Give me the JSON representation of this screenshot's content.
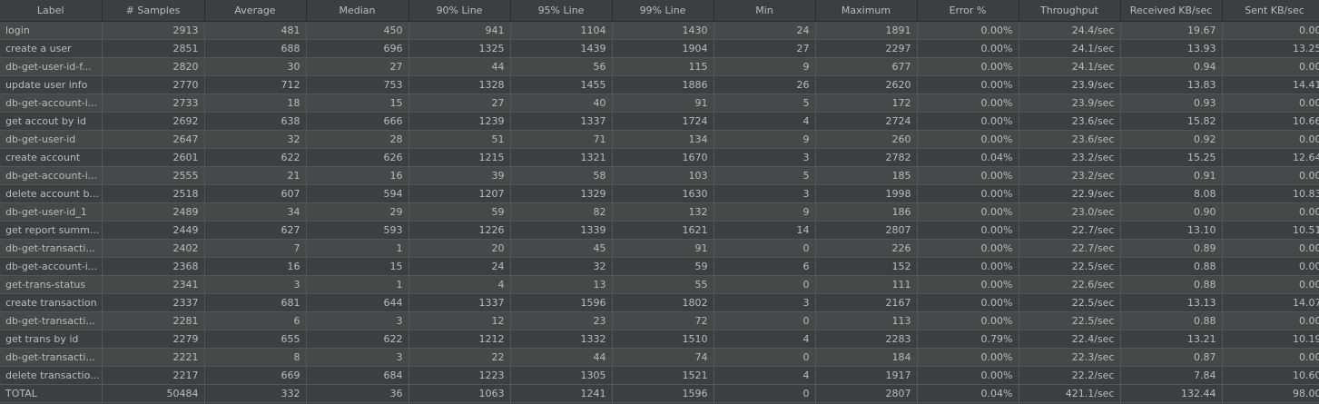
{
  "table": {
    "columns": [
      "Label",
      "# Samples",
      "Average",
      "Median",
      "90% Line",
      "95% Line",
      "99% Line",
      "Min",
      "Maximum",
      "Error %",
      "Throughput",
      "Received KB/sec",
      "Sent KB/sec"
    ],
    "rows": [
      [
        "login",
        "2913",
        "481",
        "450",
        "941",
        "1104",
        "1430",
        "24",
        "1891",
        "0.00%",
        "24.4/sec",
        "19.67",
        "0.00"
      ],
      [
        "create a user",
        "2851",
        "688",
        "696",
        "1325",
        "1439",
        "1904",
        "27",
        "2297",
        "0.00%",
        "24.1/sec",
        "13.93",
        "13.25"
      ],
      [
        "db-get-user-id-f...",
        "2820",
        "30",
        "27",
        "44",
        "56",
        "115",
        "9",
        "677",
        "0.00%",
        "24.1/sec",
        "0.94",
        "0.00"
      ],
      [
        "update user info",
        "2770",
        "712",
        "753",
        "1328",
        "1455",
        "1886",
        "26",
        "2620",
        "0.00%",
        "23.9/sec",
        "13.83",
        "14.41"
      ],
      [
        "db-get-account-i...",
        "2733",
        "18",
        "15",
        "27",
        "40",
        "91",
        "5",
        "172",
        "0.00%",
        "23.9/sec",
        "0.93",
        "0.00"
      ],
      [
        "get accout by id",
        "2692",
        "638",
        "666",
        "1239",
        "1337",
        "1724",
        "4",
        "2724",
        "0.00%",
        "23.6/sec",
        "15.82",
        "10.66"
      ],
      [
        "db-get-user-id",
        "2647",
        "32",
        "28",
        "51",
        "71",
        "134",
        "9",
        "260",
        "0.00%",
        "23.6/sec",
        "0.92",
        "0.00"
      ],
      [
        "create account",
        "2601",
        "622",
        "626",
        "1215",
        "1321",
        "1670",
        "3",
        "2782",
        "0.04%",
        "23.2/sec",
        "15.25",
        "12.64"
      ],
      [
        "db-get-account-i...",
        "2555",
        "21",
        "16",
        "39",
        "58",
        "103",
        "5",
        "185",
        "0.00%",
        "23.2/sec",
        "0.91",
        "0.00"
      ],
      [
        "delete account b...",
        "2518",
        "607",
        "594",
        "1207",
        "1329",
        "1630",
        "3",
        "1998",
        "0.00%",
        "22.9/sec",
        "8.08",
        "10.83"
      ],
      [
        "db-get-user-id_1",
        "2489",
        "34",
        "29",
        "59",
        "82",
        "132",
        "9",
        "186",
        "0.00%",
        "23.0/sec",
        "0.90",
        "0.00"
      ],
      [
        "get report summ...",
        "2449",
        "627",
        "593",
        "1226",
        "1339",
        "1621",
        "14",
        "2807",
        "0.00%",
        "22.7/sec",
        "13.10",
        "10.51"
      ],
      [
        "db-get-transacti...",
        "2402",
        "7",
        "1",
        "20",
        "45",
        "91",
        "0",
        "226",
        "0.00%",
        "22.7/sec",
        "0.89",
        "0.00"
      ],
      [
        "db-get-account-i...",
        "2368",
        "16",
        "15",
        "24",
        "32",
        "59",
        "6",
        "152",
        "0.00%",
        "22.5/sec",
        "0.88",
        "0.00"
      ],
      [
        "get-trans-status",
        "2341",
        "3",
        "1",
        "4",
        "13",
        "55",
        "0",
        "111",
        "0.00%",
        "22.6/sec",
        "0.88",
        "0.00"
      ],
      [
        "create transaction",
        "2337",
        "681",
        "644",
        "1337",
        "1596",
        "1802",
        "3",
        "2167",
        "0.00%",
        "22.5/sec",
        "13.13",
        "14.07"
      ],
      [
        "db-get-transacti...",
        "2281",
        "6",
        "3",
        "12",
        "23",
        "72",
        "0",
        "113",
        "0.00%",
        "22.5/sec",
        "0.88",
        "0.00"
      ],
      [
        "get trans by id",
        "2279",
        "655",
        "622",
        "1212",
        "1332",
        "1510",
        "4",
        "2283",
        "0.79%",
        "22.4/sec",
        "13.21",
        "10.19"
      ],
      [
        "db-get-transacti...",
        "2221",
        "8",
        "3",
        "22",
        "44",
        "74",
        "0",
        "184",
        "0.00%",
        "22.3/sec",
        "0.87",
        "0.00"
      ],
      [
        "delete transactio...",
        "2217",
        "669",
        "684",
        "1223",
        "1305",
        "1521",
        "4",
        "1917",
        "0.00%",
        "22.2/sec",
        "7.84",
        "10.60"
      ]
    ],
    "total": [
      "TOTAL",
      "50484",
      "332",
      "36",
      "1063",
      "1241",
      "1596",
      "0",
      "2807",
      "0.04%",
      "421.1/sec",
      "132.44",
      "98.00"
    ]
  },
  "colors": {
    "background": "#3c3f41",
    "row_alt": "#45494a",
    "text": "#bbbbbb",
    "grid_line": "#515658"
  }
}
